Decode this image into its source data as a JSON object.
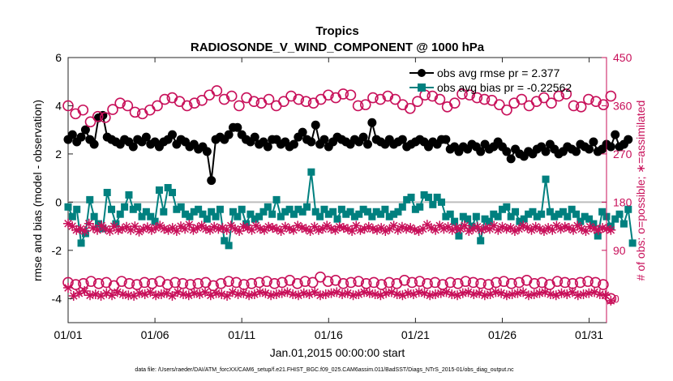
{
  "chart_data": {
    "type": "line",
    "title": "Tropics",
    "subtitle": "RADIOSONDE_V_WIND_COMPONENT @ 1000 hPa",
    "xlabel": "Jan.01,2015 00:00:00 start",
    "ylabel_left": "rmse and bias (model - observation)",
    "ylabel_right": "# of obs: o=possible; ∗=assimilated",
    "xlim": [
      1,
      32
    ],
    "ylim_left": [
      -5,
      6
    ],
    "ylim_right": [
      -45,
      450
    ],
    "x_ticks": [
      1,
      6,
      11,
      16,
      21,
      26,
      31
    ],
    "x_tick_labels": [
      "01/01",
      "01/06",
      "01/11",
      "01/16",
      "01/21",
      "01/26",
      "01/31"
    ],
    "y_ticks_left": [
      "-4",
      "-2",
      "0",
      "2",
      "4",
      "6"
    ],
    "y_ticks_right": [
      "0",
      "90",
      "180",
      "270",
      "360",
      "450"
    ],
    "legend": [
      {
        "label": "obs avg rmse pr = 2.377",
        "color": "#000000"
      },
      {
        "label": "obs avg bias pr = -0.22562",
        "color": "#00807f"
      }
    ],
    "footer": "data file: /Users/raeder/DAI/ATM_forcXX/CAM6_setup/f.e21.FHIST_BGC.f09_025.CAM6assim.011/BadSST/Diags_NTrS_2015-01/obs_diag_output.nc",
    "x_step_days": 0.25,
    "series": [
      {
        "name": "rmse",
        "axis": "left",
        "color": "#000000",
        "values": [
          2.6,
          2.8,
          2.5,
          2.7,
          3.0,
          2.6,
          2.4,
          3.5,
          3.6,
          2.7,
          2.6,
          2.5,
          2.4,
          2.6,
          2.5,
          2.3,
          2.6,
          2.5,
          2.7,
          2.4,
          2.5,
          2.3,
          2.5,
          2.6,
          2.8,
          2.4,
          2.6,
          2.5,
          2.3,
          2.4,
          2.2,
          2.3,
          2.1,
          0.9,
          2.6,
          2.7,
          2.6,
          2.8,
          3.1,
          3.1,
          2.8,
          2.6,
          2.5,
          2.7,
          2.4,
          2.5,
          2.3,
          2.6,
          2.6,
          2.4,
          2.5,
          2.3,
          2.4,
          2.7,
          2.9,
          2.6,
          2.5,
          3.2,
          2.4,
          2.6,
          2.3,
          2.5,
          2.7,
          2.6,
          2.5,
          2.4,
          2.6,
          2.5,
          2.7,
          2.4,
          3.3,
          2.6,
          2.5,
          2.4,
          2.6,
          2.4,
          2.5,
          2.6,
          2.3,
          2.4,
          2.5,
          2.6,
          2.5,
          2.3,
          2.5,
          2.4,
          2.6,
          2.6,
          2.2,
          2.3,
          2.1,
          2.3,
          2.2,
          2.4,
          2.3,
          2.1,
          2.4,
          2.2,
          2.3,
          2.5,
          2.3,
          2.1,
          1.8,
          2.2,
          2.0,
          1.9,
          2.1,
          2.0,
          2.2,
          2.3,
          2.1,
          2.4,
          2.2,
          2.0,
          2.1,
          2.3,
          2.2,
          2.1,
          2.4,
          2.3,
          2.2,
          2.5,
          2.1,
          2.2,
          2.4,
          2.3,
          2.8,
          2.3,
          2.4,
          2.6
        ]
      },
      {
        "name": "bias",
        "axis": "left",
        "color": "#00807f",
        "values": [
          -0.2,
          -0.6,
          -0.3,
          -1.7,
          -1.3,
          0.1,
          -0.6,
          -0.9,
          -1.1,
          0.4,
          -0.3,
          -0.9,
          -0.5,
          -0.2,
          0.3,
          -0.3,
          -0.2,
          -0.6,
          -0.4,
          -0.6,
          -0.8,
          0.5,
          -0.4,
          0.6,
          0.4,
          -0.3,
          -0.2,
          -0.5,
          -0.6,
          -0.4,
          -0.3,
          -0.5,
          -0.7,
          -0.4,
          -0.6,
          -0.3,
          -1.6,
          -1.8,
          -0.4,
          -0.6,
          -0.3,
          -0.9,
          -0.5,
          -0.7,
          -0.6,
          -0.4,
          -0.2,
          -0.5,
          0.1,
          -0.6,
          -0.4,
          -0.3,
          -0.5,
          -0.3,
          -0.4,
          -0.2,
          1.25,
          -0.4,
          -0.6,
          -0.3,
          -0.5,
          -0.4,
          -0.7,
          -0.3,
          -0.5,
          -0.4,
          -0.6,
          -0.5,
          -0.3,
          -0.4,
          -0.6,
          -0.4,
          -0.5,
          -0.3,
          -0.6,
          -0.5,
          -0.4,
          -0.2,
          0.1,
          0.2,
          -0.3,
          -0.2,
          0.3,
          0.2,
          -0.1,
          0.2,
          0.0,
          -0.6,
          -0.5,
          -0.8,
          -1.4,
          -0.6,
          -0.7,
          -1.0,
          -0.6,
          -1.6,
          -0.7,
          -0.8,
          -0.5,
          -0.6,
          -0.3,
          -0.2,
          -0.6,
          -0.4,
          -0.8,
          -0.7,
          -0.5,
          -0.4,
          -0.6,
          -0.5,
          0.95,
          -0.4,
          -0.6,
          -0.5,
          -0.4,
          -0.6,
          -0.3,
          -0.5,
          -0.8,
          -0.6,
          -0.7,
          -0.9,
          -1.4,
          -0.4,
          -0.6,
          -1.0,
          -0.7,
          -0.5,
          -0.9,
          -0.3,
          -1.7
        ]
      },
      {
        "name": "possible (upper)",
        "axis": "right",
        "marker": "circle",
        "color": "#c8105a",
        "values": [
          360,
          345,
          352,
          330,
          340,
          338,
          353,
          365,
          360,
          348,
          345,
          352,
          360,
          372,
          375,
          368,
          360,
          365,
          370,
          380,
          388,
          372,
          378,
          360,
          375,
          368,
          365,
          372,
          360,
          368,
          378,
          372,
          368,
          365,
          372,
          380,
          375,
          382,
          380,
          360,
          362,
          375,
          372,
          378,
          372,
          362,
          355,
          368,
          380,
          378,
          372,
          358,
          365,
          382,
          380,
          375,
          372,
          370,
          362,
          352,
          365,
          372,
          360,
          368,
          375,
          365,
          378,
          382,
          360,
          358,
          372,
          368,
          362,
          378
        ]
      },
      {
        "name": "assimilated (upper)",
        "axis": "right",
        "marker": "star",
        "color": "#c8105a",
        "values": [
          140,
          135,
          128,
          130,
          126,
          140,
          132,
          128,
          136,
          130,
          126,
          135,
          128,
          130,
          134,
          128,
          135,
          125,
          130,
          133,
          128,
          132,
          136,
          130,
          128,
          132,
          126,
          135,
          130,
          138,
          128,
          132,
          136,
          130,
          128,
          134,
          130,
          132,
          128,
          136,
          130,
          126,
          134,
          132,
          128,
          136,
          130,
          128,
          134,
          132,
          130,
          126,
          134,
          130,
          128,
          136,
          132,
          130,
          126,
          134,
          128,
          130,
          136,
          130,
          128,
          134,
          132,
          130,
          126,
          136,
          128,
          130,
          134,
          130,
          128,
          132,
          126,
          130,
          136,
          128,
          134,
          130,
          132,
          128,
          126,
          130,
          138,
          132,
          128,
          136,
          130,
          134,
          128,
          132,
          130,
          136,
          126,
          130,
          134,
          128,
          132,
          130,
          136,
          128,
          134,
          130,
          132,
          126,
          130,
          136,
          132,
          128,
          134,
          130,
          126,
          132,
          128,
          136,
          130,
          134,
          132,
          128,
          136,
          130,
          126,
          134,
          130,
          128,
          132,
          130,
          128
        ]
      },
      {
        "name": "possible (lower)",
        "axis": "right",
        "marker": "circle",
        "color": "#c8105a",
        "values": [
          30,
          26,
          28,
          32,
          28,
          30,
          24,
          32,
          28,
          26,
          30,
          28,
          32,
          26,
          30,
          28,
          26,
          28,
          30,
          24,
          28,
          32,
          30,
          26,
          28,
          30,
          32,
          28,
          30,
          34,
          28,
          32,
          30,
          40,
          32,
          34,
          28,
          30,
          32,
          28,
          30,
          26,
          30,
          28,
          34,
          30,
          32,
          28,
          30,
          26,
          30,
          28,
          32,
          30,
          28,
          26,
          30,
          32,
          28,
          30,
          34,
          28,
          30,
          26,
          32,
          30,
          28,
          30,
          32,
          30,
          26,
          0
        ]
      },
      {
        "name": "assimilated (lower)",
        "axis": "right",
        "marker": "star",
        "color": "#c8105a",
        "values": [
          20,
          5,
          10,
          14,
          6,
          8,
          5,
          10,
          6,
          12,
          8,
          6,
          5,
          10,
          8,
          12,
          6,
          8,
          10,
          5,
          12,
          8,
          6,
          10,
          8,
          12,
          6,
          10,
          8,
          5,
          12,
          8,
          10,
          6,
          8,
          12,
          10,
          6,
          8,
          10,
          12,
          8,
          6,
          10,
          8,
          12,
          6,
          8,
          10,
          12,
          8,
          10,
          6,
          8,
          12,
          10,
          8,
          6,
          10,
          12,
          8,
          6,
          10,
          8,
          12,
          10,
          6,
          8,
          10,
          12,
          8,
          6,
          10,
          12,
          8,
          10,
          6,
          8,
          12,
          10,
          6,
          8,
          10,
          12,
          6,
          8,
          10,
          12,
          8,
          6,
          10,
          8,
          12,
          6,
          8,
          10,
          12,
          8,
          6,
          -4
        ]
      }
    ]
  }
}
